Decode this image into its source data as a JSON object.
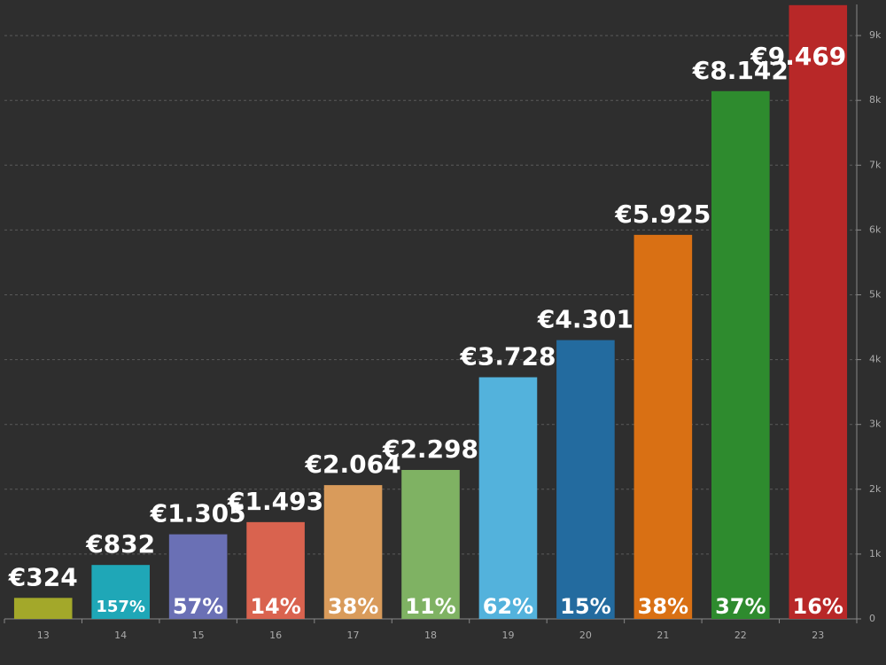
{
  "chart_data": {
    "type": "bar",
    "categories": [
      "13",
      "14",
      "15",
      "16",
      "17",
      "18",
      "19",
      "20",
      "21",
      "22",
      "23"
    ],
    "values": [
      324,
      832,
      1305,
      1493,
      2064,
      2298,
      3728,
      4301,
      5925,
      8142,
      9469
    ],
    "value_labels": [
      "€324",
      "€832",
      "€1.305",
      "€1.493",
      "€2.064",
      "€2.298",
      "€3.728",
      "€4.301",
      "€5.925",
      "€8.142",
      "€9.469"
    ],
    "growth": [
      null,
      157,
      57,
      14,
      38,
      11,
      62,
      15,
      38,
      37,
      16
    ],
    "growth_labels": [
      null,
      "157%",
      "57%",
      "14%",
      "38%",
      "11%",
      "62%",
      "15%",
      "38%",
      "37%",
      "16%"
    ],
    "colors": [
      "#a3a82a",
      "#1fa7b7",
      "#6a70b5",
      "#d9634f",
      "#d99b5b",
      "#7fb263",
      "#53b2dc",
      "#236b9f",
      "#d97014",
      "#2e8b2e",
      "#b82828"
    ],
    "ylim": [
      0,
      9480
    ],
    "yticks": [
      0,
      {
        "value": 1000,
        "label": "1k"
      },
      {
        "value": 2000,
        "label": "2k"
      },
      {
        "value": 3000,
        "label": "3k"
      },
      {
        "value": 4000,
        "label": "4k"
      },
      {
        "value": 5000,
        "label": "5k"
      },
      {
        "value": 6000,
        "label": "6k"
      },
      {
        "value": 7000,
        "label": "7k"
      },
      {
        "value": 8000,
        "label": "8k"
      },
      {
        "value": 9000,
        "label": "9k"
      }
    ],
    "grid": true
  }
}
